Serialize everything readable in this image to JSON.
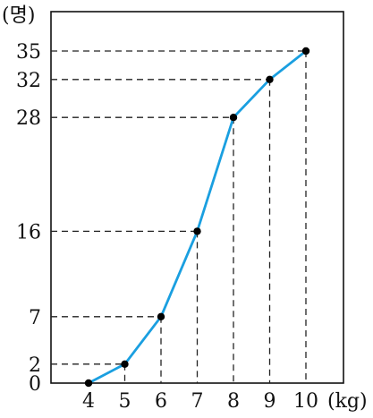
{
  "chart_data": {
    "type": "line",
    "x": [
      4,
      5,
      6,
      7,
      8,
      9,
      10
    ],
    "y": [
      0,
      2,
      7,
      16,
      28,
      32,
      35
    ],
    "xlabel": "(kg)",
    "ylabel": "(명)",
    "x_ticks": [
      "4",
      "5",
      "6",
      "7",
      "8",
      "9",
      "10"
    ],
    "y_ticks": [
      "0",
      "2",
      "7",
      "16",
      "28",
      "32",
      "35"
    ],
    "xlim": [
      3,
      11
    ],
    "ylim": [
      0,
      38
    ],
    "grid": false,
    "guide_lines": "dashed",
    "line_color": "#1a9fe0",
    "marker_color": "#000000"
  }
}
